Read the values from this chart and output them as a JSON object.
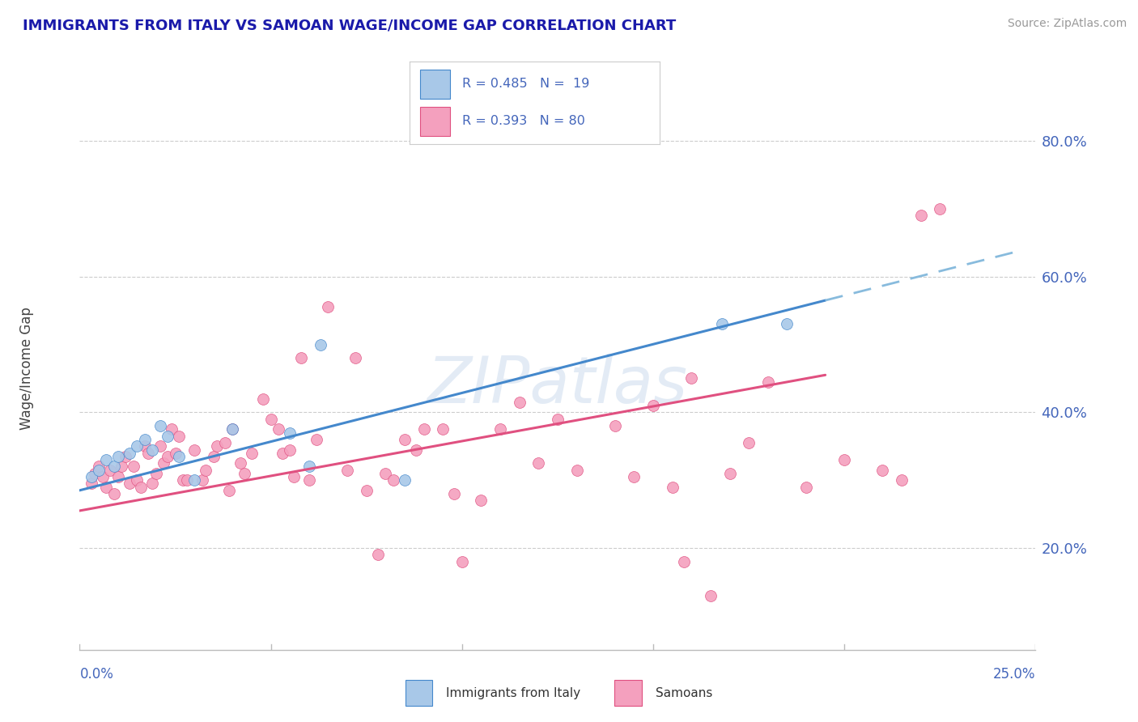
{
  "title": "IMMIGRANTS FROM ITALY VS SAMOAN WAGE/INCOME GAP CORRELATION CHART",
  "source": "Source: ZipAtlas.com",
  "ylabel": "Wage/Income Gap",
  "right_yticks": [
    "20.0%",
    "40.0%",
    "60.0%",
    "80.0%"
  ],
  "right_ytick_vals": [
    0.2,
    0.4,
    0.6,
    0.8
  ],
  "xlim": [
    0.0,
    0.25
  ],
  "ylim": [
    0.05,
    0.88
  ],
  "color_blue": "#a8c8e8",
  "color_pink": "#f4a0be",
  "color_line_blue": "#4488cc",
  "color_line_pink": "#e05080",
  "color_line_dash": "#88bbdd",
  "title_color": "#1a1aaa",
  "axis_label_color": "#4466bb",
  "watermark": "ZIPatlas",
  "italy_points": [
    [
      0.003,
      0.305
    ],
    [
      0.005,
      0.315
    ],
    [
      0.007,
      0.33
    ],
    [
      0.009,
      0.32
    ],
    [
      0.01,
      0.335
    ],
    [
      0.013,
      0.34
    ],
    [
      0.015,
      0.35
    ],
    [
      0.017,
      0.36
    ],
    [
      0.019,
      0.345
    ],
    [
      0.021,
      0.38
    ],
    [
      0.023,
      0.365
    ],
    [
      0.026,
      0.335
    ],
    [
      0.03,
      0.3
    ],
    [
      0.04,
      0.375
    ],
    [
      0.055,
      0.37
    ],
    [
      0.06,
      0.32
    ],
    [
      0.063,
      0.5
    ],
    [
      0.085,
      0.3
    ],
    [
      0.168,
      0.53
    ],
    [
      0.185,
      0.53
    ]
  ],
  "samoan_points": [
    [
      0.003,
      0.295
    ],
    [
      0.004,
      0.31
    ],
    [
      0.005,
      0.32
    ],
    [
      0.006,
      0.305
    ],
    [
      0.007,
      0.29
    ],
    [
      0.008,
      0.315
    ],
    [
      0.009,
      0.28
    ],
    [
      0.01,
      0.305
    ],
    [
      0.011,
      0.32
    ],
    [
      0.012,
      0.335
    ],
    [
      0.013,
      0.295
    ],
    [
      0.014,
      0.32
    ],
    [
      0.015,
      0.3
    ],
    [
      0.016,
      0.29
    ],
    [
      0.017,
      0.35
    ],
    [
      0.018,
      0.34
    ],
    [
      0.019,
      0.295
    ],
    [
      0.02,
      0.31
    ],
    [
      0.021,
      0.35
    ],
    [
      0.022,
      0.325
    ],
    [
      0.023,
      0.335
    ],
    [
      0.024,
      0.375
    ],
    [
      0.025,
      0.34
    ],
    [
      0.026,
      0.365
    ],
    [
      0.027,
      0.3
    ],
    [
      0.028,
      0.3
    ],
    [
      0.03,
      0.345
    ],
    [
      0.032,
      0.3
    ],
    [
      0.033,
      0.315
    ],
    [
      0.035,
      0.335
    ],
    [
      0.036,
      0.35
    ],
    [
      0.038,
      0.355
    ],
    [
      0.039,
      0.285
    ],
    [
      0.04,
      0.375
    ],
    [
      0.042,
      0.325
    ],
    [
      0.043,
      0.31
    ],
    [
      0.045,
      0.34
    ],
    [
      0.048,
      0.42
    ],
    [
      0.05,
      0.39
    ],
    [
      0.052,
      0.375
    ],
    [
      0.053,
      0.34
    ],
    [
      0.055,
      0.345
    ],
    [
      0.056,
      0.305
    ],
    [
      0.058,
      0.48
    ],
    [
      0.06,
      0.3
    ],
    [
      0.062,
      0.36
    ],
    [
      0.065,
      0.555
    ],
    [
      0.07,
      0.315
    ],
    [
      0.072,
      0.48
    ],
    [
      0.075,
      0.285
    ],
    [
      0.078,
      0.19
    ],
    [
      0.08,
      0.31
    ],
    [
      0.082,
      0.3
    ],
    [
      0.085,
      0.36
    ],
    [
      0.088,
      0.345
    ],
    [
      0.09,
      0.375
    ],
    [
      0.095,
      0.375
    ],
    [
      0.098,
      0.28
    ],
    [
      0.1,
      0.18
    ],
    [
      0.105,
      0.27
    ],
    [
      0.11,
      0.375
    ],
    [
      0.115,
      0.415
    ],
    [
      0.12,
      0.325
    ],
    [
      0.125,
      0.39
    ],
    [
      0.13,
      0.315
    ],
    [
      0.14,
      0.38
    ],
    [
      0.145,
      0.305
    ],
    [
      0.15,
      0.41
    ],
    [
      0.155,
      0.29
    ],
    [
      0.158,
      0.18
    ],
    [
      0.16,
      0.45
    ],
    [
      0.165,
      0.13
    ],
    [
      0.17,
      0.31
    ],
    [
      0.175,
      0.355
    ],
    [
      0.18,
      0.445
    ],
    [
      0.19,
      0.29
    ],
    [
      0.2,
      0.33
    ],
    [
      0.21,
      0.315
    ],
    [
      0.215,
      0.3
    ],
    [
      0.22,
      0.69
    ],
    [
      0.225,
      0.7
    ]
  ],
  "italy_line_xrange": [
    0.0,
    0.195
  ],
  "italy_dash_xrange": [
    0.195,
    0.245
  ],
  "samoan_line_xrange": [
    0.0,
    0.195
  ]
}
